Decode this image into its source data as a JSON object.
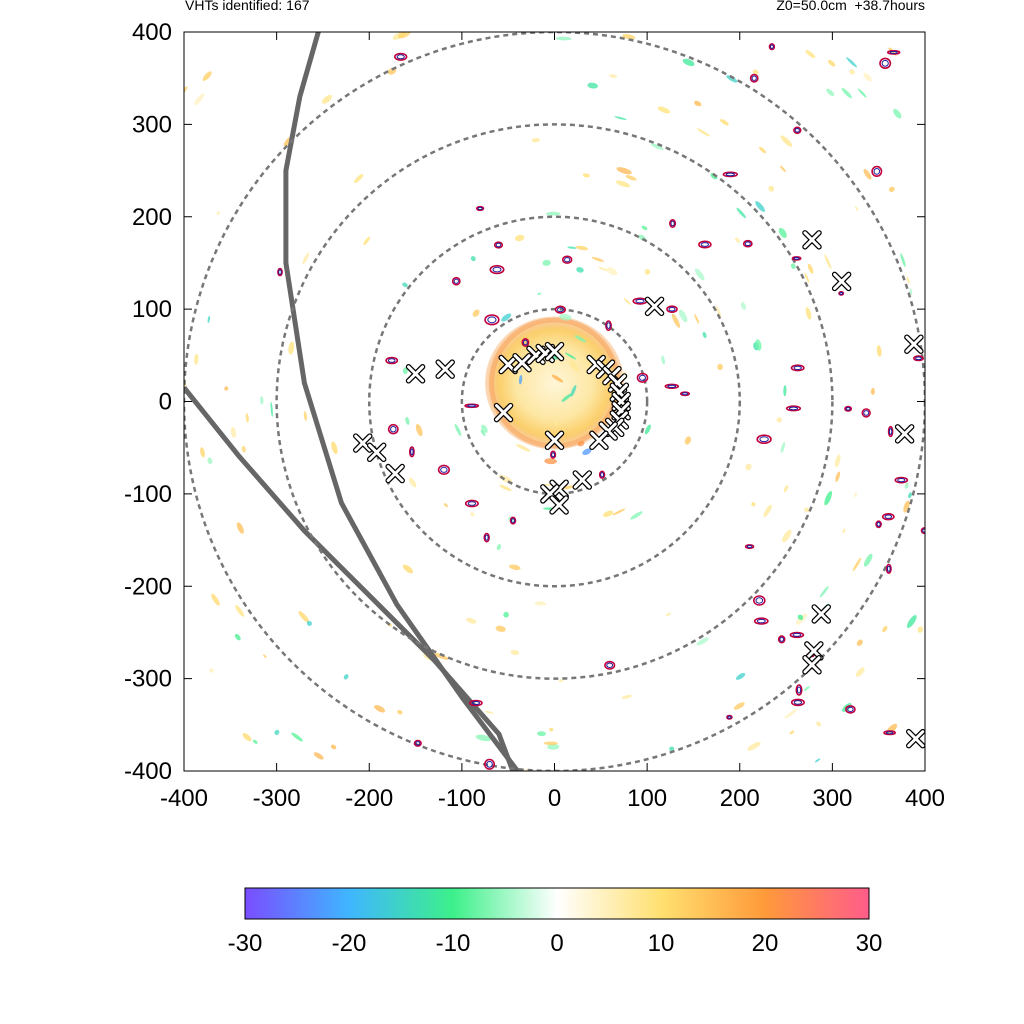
{
  "header": {
    "left_text": "VHTs identified: 167",
    "right_text": "Z0=50.0cm  +38.7hours"
  },
  "colors": {
    "ring": "#777777",
    "track": "#666666",
    "contour_outer": "#c0003c",
    "contour_inner": "#2020a0",
    "marker_fill": "#ffffff",
    "marker_stroke": "#000000",
    "colorbar_stops": [
      "#7a4dff",
      "#3fb6ff",
      "#3df08a",
      "#ffffff",
      "#ffe070",
      "#ff9a3a",
      "#ff5c8a"
    ]
  },
  "chart_data": {
    "type": "scatter",
    "xlim": [
      -400,
      400
    ],
    "ylim": [
      -400,
      400
    ],
    "x_ticks": [
      -400,
      -300,
      -200,
      -100,
      0,
      100,
      200,
      300,
      400
    ],
    "y_ticks": [
      -400,
      -300,
      -200,
      -100,
      0,
      100,
      200,
      300,
      400
    ],
    "grid": false,
    "range_rings": [
      100,
      200,
      300,
      400
    ],
    "vht_markers": [
      [
        -50,
        40
      ],
      [
        -35,
        42
      ],
      [
        -20,
        50
      ],
      [
        -10,
        52
      ],
      [
        0,
        54
      ],
      [
        45,
        40
      ],
      [
        55,
        35
      ],
      [
        62,
        28
      ],
      [
        68,
        20
      ],
      [
        70,
        10
      ],
      [
        72,
        0
      ],
      [
        72,
        -10
      ],
      [
        70,
        -20
      ],
      [
        65,
        -28
      ],
      [
        58,
        -32
      ],
      [
        -55,
        -12
      ],
      [
        0,
        -42
      ],
      [
        48,
        -42
      ],
      [
        30,
        -85
      ],
      [
        5,
        -95
      ],
      [
        -5,
        -100
      ],
      [
        5,
        -112
      ],
      [
        -150,
        30
      ],
      [
        -118,
        35
      ],
      [
        -207,
        -45
      ],
      [
        -192,
        -55
      ],
      [
        -172,
        -78
      ],
      [
        108,
        103
      ],
      [
        278,
        175
      ],
      [
        310,
        130
      ],
      [
        388,
        62
      ],
      [
        378,
        -35
      ],
      [
        288,
        -230
      ],
      [
        280,
        -270
      ],
      [
        278,
        -285
      ],
      [
        390,
        -365
      ]
    ],
    "tracks": [
      [
        [
          -255,
          400
        ],
        [
          -275,
          330
        ],
        [
          -290,
          250
        ],
        [
          -290,
          150
        ],
        [
          -270,
          20
        ],
        [
          -230,
          -110
        ],
        [
          -170,
          -220
        ],
        [
          -100,
          -320
        ],
        [
          -40,
          -400
        ]
      ],
      [
        [
          -400,
          15
        ],
        [
          -340,
          -60
        ],
        [
          -270,
          -140
        ],
        [
          -200,
          -210
        ],
        [
          -130,
          -280
        ],
        [
          -60,
          -360
        ],
        [
          -45,
          -400
        ]
      ]
    ],
    "vortex_center": [
      0,
      20
    ],
    "colorbar": {
      "min": -30,
      "max": 30,
      "ticks": [
        -30,
        -20,
        -10,
        0,
        10,
        20,
        30
      ]
    }
  }
}
